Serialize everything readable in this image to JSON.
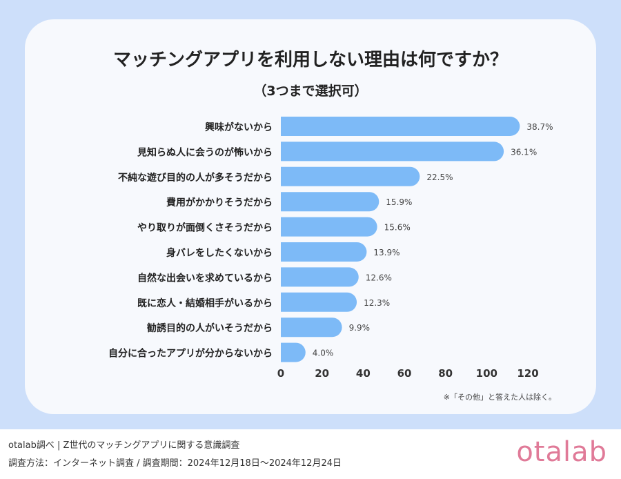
{
  "chart_data": {
    "type": "bar",
    "orientation": "horizontal",
    "title": "マッチングアプリを利用しない理由は何ですか？",
    "subtitle": "（3つまで選択可）",
    "categories": [
      "興味がないから",
      "見知らぬ人に会うのが怖いから",
      "不純な遊び目的の人が多そうだから",
      "費用がかかりそうだから",
      "やり取りが面倒くさそうだから",
      "身バレをしたくないから",
      "自然な出会いを求めているから",
      "既に恋人・結婚相手がいるから",
      "勧誘目的の人がいそうだから",
      "自分に合ったアプリが分からないから"
    ],
    "values": [
      38.7,
      36.1,
      22.5,
      15.9,
      15.6,
      13.9,
      12.6,
      12.3,
      9.9,
      4.0
    ],
    "data_labels": [
      "38.7%",
      "36.1%",
      "22.5%",
      "15.9%",
      "15.6%",
      "13.9%",
      "12.6%",
      "12.3%",
      "9.9%",
      "4.0%"
    ],
    "xticks": [
      "0",
      "20",
      "40",
      "60",
      "80",
      "100",
      "120"
    ],
    "xlim": [
      0,
      120
    ],
    "grid": false,
    "bar_color": "#7dbaf7",
    "note": "※「その他」と答えた人は除く。"
  },
  "footer": {
    "line1": "otalab調べ | Z世代のマッチングアプリに関する意識調査",
    "line2": "調査方法：インターネット調査 / 調査期間：2024年12月18日〜2024年12月24日",
    "logo": "otalab"
  }
}
